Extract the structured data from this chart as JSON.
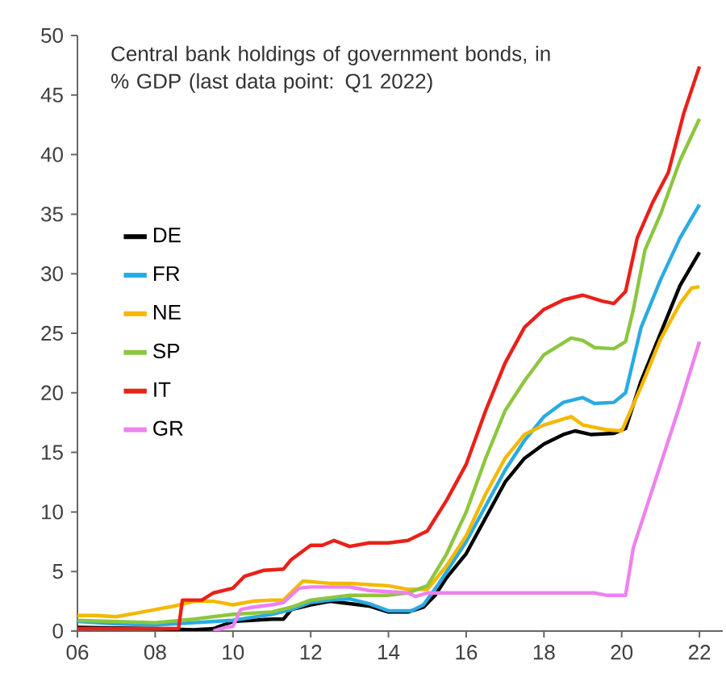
{
  "chart_data": {
    "type": "line",
    "title": "Central bank holdings of government bonds, in % GDP (last data point: Q1 2022)",
    "xlim": [
      2006,
      2022.6
    ],
    "ylim": [
      0,
      50
    ],
    "xticks": [
      {
        "value": 2006,
        "label": "06"
      },
      {
        "value": 2008,
        "label": "08"
      },
      {
        "value": 2010,
        "label": "10"
      },
      {
        "value": 2012,
        "label": "12"
      },
      {
        "value": 2014,
        "label": "14"
      },
      {
        "value": 2016,
        "label": "16"
      },
      {
        "value": 2018,
        "label": "18"
      },
      {
        "value": 2020,
        "label": "20"
      },
      {
        "value": 2022,
        "label": "22"
      }
    ],
    "yticks": [
      0,
      5,
      10,
      15,
      20,
      25,
      30,
      35,
      40,
      45,
      50
    ],
    "grid": false,
    "legend": "left",
    "marker": "none",
    "line_style": "solid",
    "series": [
      {
        "name": "DE",
        "color": "#000000",
        "x": [
          2006,
          2008,
          2009,
          2009.5,
          2010,
          2011,
          2011.3,
          2011.5,
          2012,
          2012.5,
          2013,
          2013.5,
          2014,
          2014.5,
          2014.9,
          2015.2,
          2015.5,
          2016,
          2016.5,
          2017,
          2017.5,
          2018,
          2018.5,
          2018.8,
          2019.2,
          2019.8,
          2020.1,
          2020.5,
          2021,
          2021.5,
          2022
        ],
        "values": [
          0.3,
          0.2,
          0.1,
          0.2,
          0.8,
          1.0,
          1.0,
          1.8,
          2.2,
          2.5,
          2.3,
          2.1,
          1.6,
          1.6,
          2.0,
          3.0,
          4.5,
          6.5,
          9.5,
          12.5,
          14.5,
          15.7,
          16.5,
          16.8,
          16.5,
          16.6,
          17.0,
          21,
          25,
          29,
          31.8
        ]
      },
      {
        "name": "FR",
        "color": "#29abe2",
        "x": [
          2006,
          2007,
          2008,
          2009,
          2010,
          2011,
          2011.5,
          2012,
          2012.5,
          2013,
          2013.5,
          2014,
          2014.6,
          2014.9,
          2015.3,
          2015.6,
          2016,
          2016.5,
          2017,
          2017.5,
          2018,
          2018.5,
          2019,
          2019.3,
          2019.8,
          2020.1,
          2020.5,
          2021,
          2021.5,
          2022
        ],
        "values": [
          0.8,
          0.6,
          0.5,
          0.7,
          0.9,
          1.4,
          1.8,
          2.4,
          2.6,
          2.7,
          2.3,
          1.7,
          1.7,
          2.2,
          4,
          5.5,
          7.5,
          10.5,
          13.5,
          16,
          18,
          19.2,
          19.6,
          19.1,
          19.2,
          20,
          25.5,
          29.5,
          33,
          35.8
        ]
      },
      {
        "name": "NE",
        "color": "#f5b800",
        "x": [
          2006,
          2006.5,
          2007,
          2007.5,
          2008,
          2008.5,
          2009,
          2009.5,
          2010,
          2010.5,
          2011,
          2011.3,
          2011.8,
          2012.5,
          2013,
          2014,
          2014.5,
          2015,
          2015.5,
          2016,
          2016.5,
          2017,
          2017.5,
          2018,
          2018.7,
          2019,
          2019.6,
          2020,
          2020.5,
          2021,
          2021.5,
          2021.8,
          2022
        ],
        "values": [
          1.3,
          1.3,
          1.2,
          1.5,
          1.8,
          2.1,
          2.5,
          2.5,
          2.2,
          2.5,
          2.6,
          2.6,
          4.2,
          4.0,
          4.0,
          3.8,
          3.5,
          3.5,
          5.5,
          8.0,
          11.5,
          14.5,
          16.5,
          17.3,
          18.0,
          17.3,
          16.9,
          16.8,
          20.5,
          24.5,
          27.5,
          28.8,
          28.9
        ]
      },
      {
        "name": "SP",
        "color": "#8cc63f",
        "x": [
          2006,
          2007,
          2008,
          2009,
          2010,
          2011,
          2011.5,
          2012,
          2013,
          2014,
          2014.5,
          2015,
          2015.5,
          2016,
          2016.5,
          2017,
          2017.5,
          2018,
          2018.7,
          2019,
          2019.3,
          2019.8,
          2020.1,
          2020.3,
          2020.6,
          2021,
          2021.5,
          2022
        ],
        "values": [
          0.9,
          0.8,
          0.7,
          1.0,
          1.4,
          1.6,
          2.0,
          2.6,
          3.0,
          3.0,
          3.2,
          3.8,
          6.5,
          10,
          14.5,
          18.5,
          21,
          23.2,
          24.6,
          24.4,
          23.8,
          23.7,
          24.3,
          27,
          32,
          35,
          39.5,
          43
        ]
      },
      {
        "name": "IT",
        "color": "#e8211a",
        "x": [
          2006,
          2008.6,
          2008.7,
          2009.2,
          2009.5,
          2010,
          2010.3,
          2010.8,
          2011.3,
          2011.5,
          2012,
          2012.3,
          2012.6,
          2013,
          2013.5,
          2014,
          2014.5,
          2015,
          2015.5,
          2016,
          2016.5,
          2017,
          2017.5,
          2018,
          2018.5,
          2019,
          2019.5,
          2019.8,
          2020.1,
          2020.4,
          2020.8,
          2021.2,
          2021.6,
          2022
        ],
        "values": [
          0.2,
          0.2,
          2.6,
          2.6,
          3.2,
          3.6,
          4.6,
          5.1,
          5.2,
          6.0,
          7.2,
          7.2,
          7.6,
          7.1,
          7.4,
          7.4,
          7.6,
          8.4,
          11,
          14,
          18.5,
          22.5,
          25.5,
          27,
          27.8,
          28.2,
          27.7,
          27.5,
          28.5,
          33,
          36,
          38.5,
          43.5,
          47.4
        ]
      },
      {
        "name": "GR",
        "color": "#ee82ee",
        "x": [
          2009.5,
          2009.8,
          2010,
          2010.2,
          2010.5,
          2011,
          2011.3,
          2011.7,
          2012,
          2013,
          2013.5,
          2014,
          2014.5,
          2014.7,
          2015,
          2016,
          2018,
          2019.3,
          2019.6,
          2020.1,
          2020.3,
          2020.7,
          2021,
          2021.5,
          2022
        ],
        "values": [
          0,
          0.3,
          0.4,
          1.8,
          2.0,
          2.2,
          2.4,
          3.6,
          3.7,
          3.7,
          3.4,
          3.3,
          3.2,
          2.9,
          3.2,
          3.2,
          3.2,
          3.2,
          3.0,
          3.0,
          7,
          11,
          14,
          19,
          24.3
        ]
      }
    ]
  }
}
